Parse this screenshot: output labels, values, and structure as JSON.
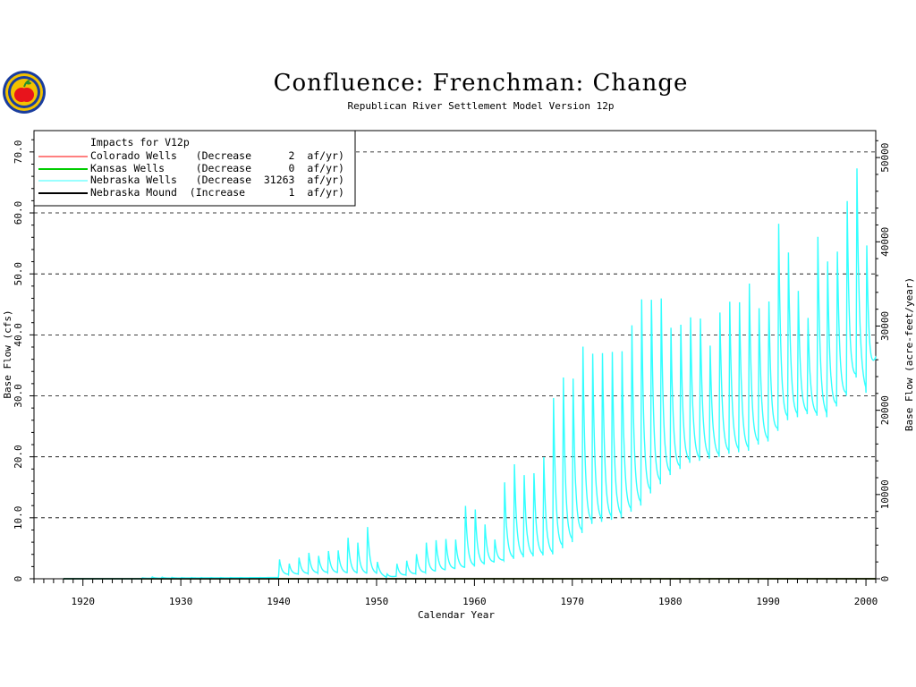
{
  "title": "Confluence:  Frenchman:  Change",
  "subtitle": "Republican River Settlement Model Version 12p",
  "chart_data": {
    "type": "line",
    "title": "Confluence:  Frenchman:  Change",
    "subtitle": "Republican River Settlement Model Version 12p",
    "xlabel": "Calendar Year",
    "ylabel": "Base Flow (cfs)",
    "y2label": "Base Flow (acre-feet/year)",
    "xlim": [
      1915,
      2001
    ],
    "ylim": [
      0,
      73.5
    ],
    "y2lim": [
      0,
      53200
    ],
    "x_ticks": [
      "1920",
      "1930",
      "1940",
      "1950",
      "1960",
      "1970",
      "1980",
      "1990",
      "2000"
    ],
    "y_ticks": [
      "0",
      "10.0",
      "20.0",
      "30.0",
      "40.0",
      "50.0",
      "60.0",
      "70.0"
    ],
    "y2_ticks": [
      "0",
      "10000",
      "20000",
      "30000",
      "40000",
      "50000"
    ],
    "grid": "horizontal dashed",
    "legend_placement": "top-left",
    "legend_title": "Impacts for V12p",
    "series": [
      {
        "name": "Colorado Wells",
        "legend_label": "Colorado Wells   (Decrease      2  af/yr)",
        "color": "#ff0000",
        "type": "constant",
        "value": 0
      },
      {
        "name": "Kansas Wells",
        "legend_label": "Kansas Wells     (Decrease      0  af/yr)",
        "color": "#00cc00",
        "type": "constant",
        "value": 0
      },
      {
        "name": "Nebraska Wells",
        "legend_label": "Nebraska Wells   (Decrease  31263  af/yr)",
        "color": "#33ffff",
        "type": "seasonal",
        "annual_peaks": [
          [
            1918,
            0
          ],
          [
            1920,
            0
          ],
          [
            1925,
            0
          ],
          [
            1927,
            0.3
          ],
          [
            1930,
            0.2
          ],
          [
            1935,
            0.2
          ],
          [
            1939,
            0.2
          ],
          [
            1940,
            3.2
          ],
          [
            1941,
            2.5
          ],
          [
            1942,
            3.5
          ],
          [
            1943,
            4.3
          ],
          [
            1944,
            3.8
          ],
          [
            1945,
            4.6
          ],
          [
            1946,
            4.7
          ],
          [
            1947,
            6.8
          ],
          [
            1948,
            6.0
          ],
          [
            1949,
            8.6
          ],
          [
            1950,
            2.8
          ],
          [
            1951,
            0.8
          ],
          [
            1952,
            2.5
          ],
          [
            1953,
            3.0
          ],
          [
            1954,
            4.1
          ],
          [
            1955,
            6.0
          ],
          [
            1956,
            6.4
          ],
          [
            1957,
            6.6
          ],
          [
            1958,
            6.5
          ],
          [
            1959,
            12.1
          ],
          [
            1960,
            11.5
          ],
          [
            1961,
            9.0
          ],
          [
            1962,
            6.5
          ],
          [
            1963,
            16.0
          ],
          [
            1964,
            19.0
          ],
          [
            1965,
            17.2
          ],
          [
            1966,
            17.5
          ],
          [
            1967,
            20.2
          ],
          [
            1968,
            30.0
          ],
          [
            1969,
            33.4
          ],
          [
            1970,
            33.2
          ],
          [
            1971,
            38.5
          ],
          [
            1972,
            37.3
          ],
          [
            1973,
            37.4
          ],
          [
            1974,
            37.6
          ],
          [
            1975,
            37.7
          ],
          [
            1976,
            42.0
          ],
          [
            1977,
            46.3
          ],
          [
            1978,
            46.2
          ],
          [
            1979,
            46.4
          ],
          [
            1980,
            41.5
          ],
          [
            1981,
            42.0
          ],
          [
            1982,
            43.2
          ],
          [
            1983,
            43.0
          ],
          [
            1984,
            38.5
          ],
          [
            1985,
            44.0
          ],
          [
            1986,
            45.8
          ],
          [
            1987,
            45.7
          ],
          [
            1988,
            48.8
          ],
          [
            1989,
            44.7
          ],
          [
            1990,
            45.8
          ],
          [
            1991,
            58.7
          ],
          [
            1992,
            53.9
          ],
          [
            1993,
            47.5
          ],
          [
            1994,
            43.0
          ],
          [
            1995,
            56.5
          ],
          [
            1996,
            52.4
          ],
          [
            1997,
            54.0
          ],
          [
            1998,
            62.4
          ],
          [
            1999,
            67.8
          ],
          [
            2000,
            55.0
          ],
          [
            2001,
            71.0
          ]
        ],
        "annual_troughs": [
          [
            1918,
            0
          ],
          [
            1939,
            0.2
          ],
          [
            1940,
            0.6
          ],
          [
            1945,
            1.0
          ],
          [
            1950,
            0.8
          ],
          [
            1951,
            0.2
          ],
          [
            1955,
            1.0
          ],
          [
            1960,
            2.0
          ],
          [
            1963,
            3.0
          ],
          [
            1965,
            3.5
          ],
          [
            1968,
            4.0
          ],
          [
            1970,
            6.0
          ],
          [
            1972,
            9.0
          ],
          [
            1975,
            10.0
          ],
          [
            1977,
            12.0
          ],
          [
            1978,
            14.0
          ],
          [
            1980,
            17.0
          ],
          [
            1982,
            19.0
          ],
          [
            1985,
            20.0
          ],
          [
            1986,
            20.5
          ],
          [
            1988,
            21.0
          ],
          [
            1989,
            22.0
          ],
          [
            1990,
            22.5
          ],
          [
            1992,
            26.0
          ],
          [
            1994,
            27.0
          ],
          [
            1996,
            26.5
          ],
          [
            1998,
            30.0
          ],
          [
            1999,
            33.0
          ],
          [
            2000,
            30.5
          ],
          [
            2001,
            36.0
          ]
        ]
      },
      {
        "name": "Nebraska Mound",
        "legend_label": "Nebraska Mound  (Increase       1  af/yr)",
        "color": "#000000",
        "type": "constant",
        "value": 0
      }
    ]
  },
  "logo": {
    "name": "agency-seal",
    "colors": [
      "#1a3d9e",
      "#f2c200",
      "#e8141c",
      "#2a8f2a"
    ]
  }
}
